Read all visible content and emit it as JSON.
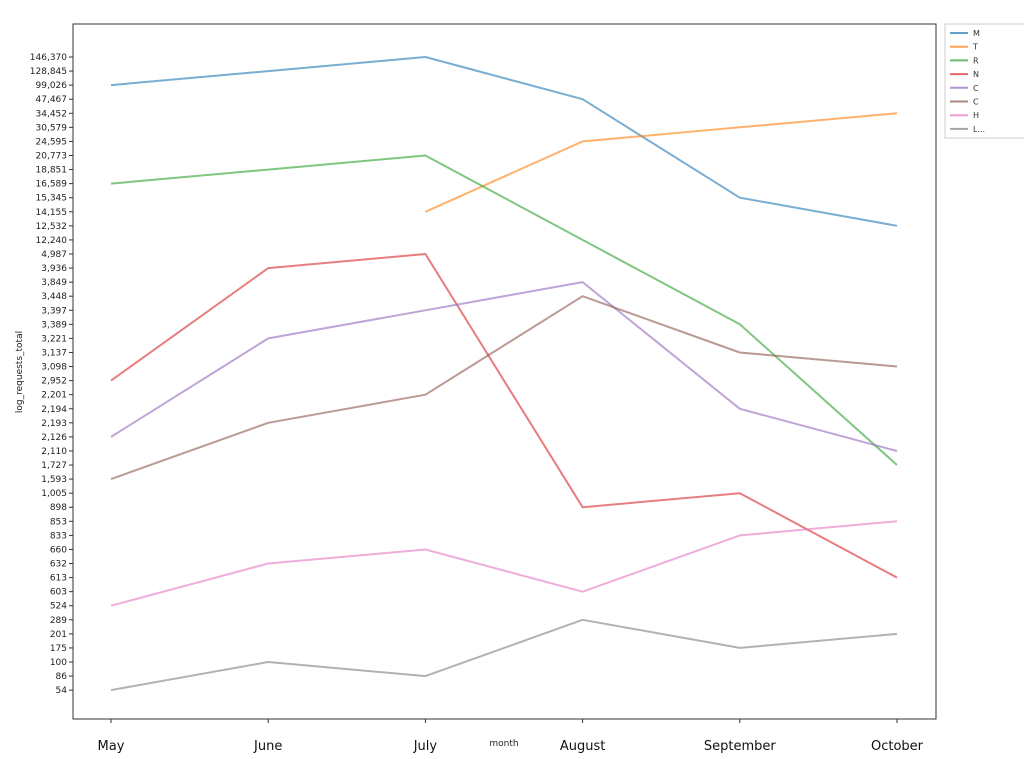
{
  "chart_data": {
    "type": "line",
    "xlabel": "month",
    "ylabel": "log_requests_total",
    "categories": [
      "May",
      "June",
      "July",
      "August",
      "September",
      "October"
    ],
    "y_ticks": [
      "146,370",
      "128,845",
      "99,026",
      "47,467",
      "34,452",
      "30,579",
      "24,595",
      "20,773",
      "18,851",
      "16,589",
      "15,345",
      "14,155",
      "12,532",
      "12,240",
      "4,987",
      "3,936",
      "3,849",
      "3,448",
      "3,397",
      "3,389",
      "3,221",
      "3,137",
      "3,098",
      "2,952",
      "2,201",
      "2,194",
      "2,193",
      "2,126",
      "2,110",
      "1,727",
      "1,593",
      "1,005",
      "898",
      "853",
      "833",
      "660",
      "632",
      "613",
      "603",
      "524",
      "289",
      "201",
      "175",
      "100",
      "86",
      "54"
    ],
    "legend_placement": "outside-upper-right",
    "grid": false,
    "series": [
      {
        "name": "M",
        "color": "#1f77b4",
        "values": [
          "99,026",
          "128,845",
          "146,370",
          "47,467",
          "15,345",
          "12,532"
        ]
      },
      {
        "name": "T",
        "color": "#ff7f0e",
        "values": [
          null,
          null,
          "14,155",
          "24,595",
          "30,579",
          "34,452"
        ]
      },
      {
        "name": "R",
        "color": "#2ca02c",
        "values": [
          "16,589",
          "18,851",
          "20,773",
          "12,240",
          "3,389",
          "1,727"
        ]
      },
      {
        "name": "N",
        "color": "#d62728",
        "values": [
          "2,952",
          "3,936",
          "4,987",
          "898",
          "1,005",
          "613"
        ]
      },
      {
        "name": "C",
        "color": "#9467bd",
        "values": [
          "2,126",
          "3,221",
          "3,397",
          "3,849",
          "2,194",
          "2,110"
        ]
      },
      {
        "name": "C",
        "color": "#8c564b",
        "values": [
          "1,593",
          "2,193",
          "2,201",
          "3,448",
          "3,137",
          "3,098"
        ]
      },
      {
        "name": "H",
        "color": "#e377c2",
        "values": [
          "524",
          "632",
          "660",
          "603",
          "833",
          "853"
        ]
      },
      {
        "name": "L...",
        "color": "#7f7f7f",
        "values": [
          "54",
          "100",
          "86",
          "289",
          "175",
          "201"
        ]
      }
    ]
  }
}
